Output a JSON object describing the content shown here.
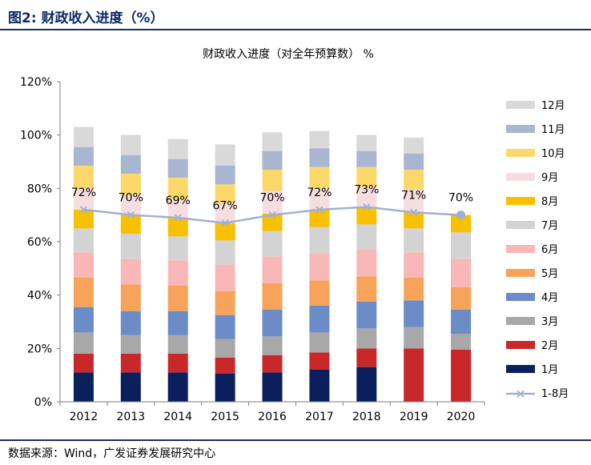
{
  "figure": {
    "label": "图2:",
    "title": "财政收入进度（%）"
  },
  "source": "数据来源：Wind，广发证券发展研究中心",
  "chart_data": {
    "type": "bar",
    "stacked": true,
    "title": "财政收入进度（对全年预算数） %",
    "categories": [
      "2012",
      "2013",
      "2014",
      "2015",
      "2016",
      "2017",
      "2018",
      "2019",
      "2020"
    ],
    "yticks": [
      "0%",
      "20%",
      "40%",
      "60%",
      "80%",
      "100%",
      "120%"
    ],
    "ylim": [
      0,
      120
    ],
    "grid": false,
    "legend_position": "right",
    "series": [
      {
        "name": "1月",
        "color": "#0b1f5c",
        "values": [
          11,
          11,
          11,
          10.5,
          11,
          12,
          13,
          0,
          0
        ]
      },
      {
        "name": "2月",
        "color": "#c8282a",
        "values": [
          7,
          7,
          7,
          6,
          6.5,
          6.5,
          7,
          20,
          19.5
        ]
      },
      {
        "name": "3月",
        "color": "#a8a8a8",
        "values": [
          8,
          7,
          7,
          7,
          7,
          7.5,
          7.5,
          8,
          6
        ]
      },
      {
        "name": "4月",
        "color": "#6b8cc7",
        "values": [
          9.5,
          9,
          9,
          9,
          10,
          10,
          10,
          10,
          9
        ]
      },
      {
        "name": "5月",
        "color": "#f7a35a",
        "values": [
          11,
          10,
          9.5,
          9,
          10,
          9.5,
          9.5,
          8.5,
          8.5
        ]
      },
      {
        "name": "6月",
        "color": "#f9b7b7",
        "values": [
          9.5,
          9.5,
          9.5,
          10,
          10,
          10,
          10,
          9.5,
          10.5
        ]
      },
      {
        "name": "7月",
        "color": "#d3d3d3",
        "values": [
          9,
          9.5,
          9,
          9,
          9.5,
          10,
          9.5,
          9,
          10
        ]
      },
      {
        "name": "8月",
        "color": "#f9c000",
        "values": [
          7,
          7,
          7,
          6.5,
          6.5,
          6.5,
          6.5,
          6,
          6.5
        ]
      },
      {
        "name": "9月",
        "color": "#f6dde0",
        "values": [
          8,
          7.5,
          7,
          7.5,
          8.5,
          8,
          7.5,
          8.5,
          0
        ]
      },
      {
        "name": "10月",
        "color": "#fcd86a",
        "values": [
          8.5,
          8,
          8,
          7,
          8,
          8,
          7.5,
          7.5,
          0
        ]
      },
      {
        "name": "11月",
        "color": "#a9b6d2",
        "values": [
          7,
          7,
          7,
          7,
          7,
          7,
          6,
          6,
          0
        ]
      },
      {
        "name": "12月",
        "color": "#d9d9d9",
        "values": [
          7.5,
          7.5,
          7.5,
          8,
          7,
          6.5,
          6,
          6,
          0
        ]
      }
    ],
    "line": {
      "name": "1-8月",
      "color": "#9fb0d8",
      "values": [
        72,
        70,
        69,
        67,
        70,
        72,
        73,
        71,
        70
      ],
      "labels": [
        "72%",
        "70%",
        "69%",
        "67%",
        "70%",
        "72%",
        "73%",
        "71%",
        "70%"
      ]
    }
  }
}
